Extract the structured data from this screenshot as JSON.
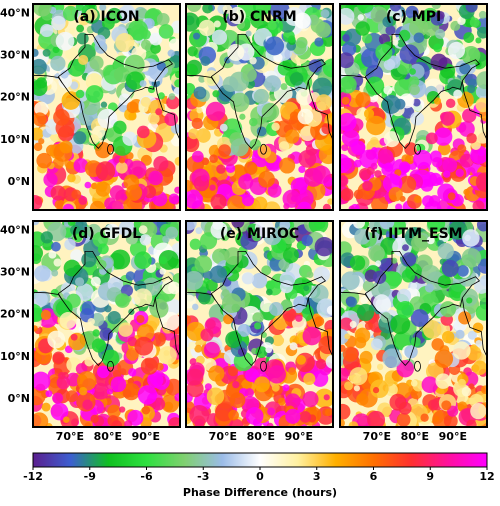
{
  "panels": [
    {
      "title": "(a)  ICON"
    },
    {
      "title": "(b)  CNRM"
    },
    {
      "title": "(c)  MPI"
    },
    {
      "title": "(d)  GFDL"
    },
    {
      "title": "(e)  MIROC"
    },
    {
      "title": "(f)  IITM_ESM"
    }
  ],
  "lat_labels": [
    "40°N",
    "30°N",
    "20°N",
    "10°N",
    "0°N"
  ],
  "lon_labels": [
    "70°E",
    "80°E",
    "90°E"
  ],
  "colorbar": {
    "label": "Phase Difference (hours)",
    "lim": [
      -12,
      12
    ],
    "ticks": [
      -12,
      -9,
      -6,
      -3,
      0,
      3,
      6,
      9,
      12
    ],
    "colors": [
      "#5b1f8f",
      "#3c5fd0",
      "#10c020",
      "#2ee040",
      "#80d070",
      "#9bbce8",
      "#ffffff",
      "#fff0a0",
      "#ffb000",
      "#ff7000",
      "#ff3030",
      "#ff10a0",
      "#ff00ff"
    ]
  }
}
